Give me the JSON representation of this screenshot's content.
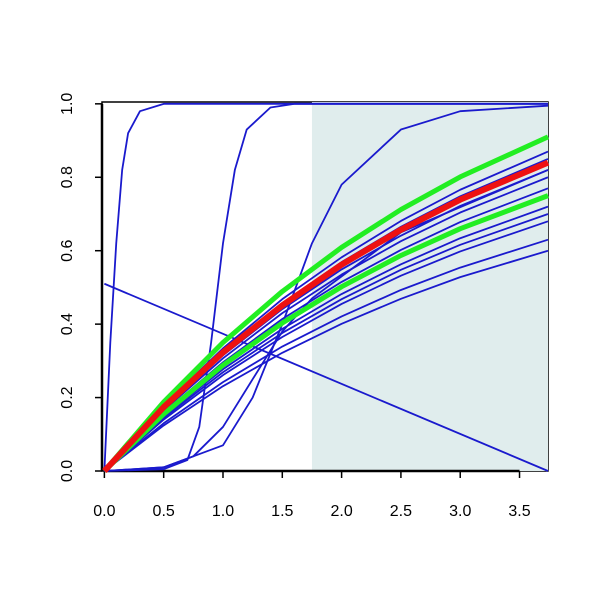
{
  "chart_data": {
    "type": "line",
    "xlim": [
      -0.02,
      3.74
    ],
    "ylim": [
      0,
      1.005
    ],
    "xticks": [
      {
        "value": 0,
        "label": "0.0"
      },
      {
        "value": 0.5,
        "label": "0.5"
      },
      {
        "value": 1,
        "label": "1.0"
      },
      {
        "value": 1.5,
        "label": "1.5"
      },
      {
        "value": 2,
        "label": "2.0"
      },
      {
        "value": 2.5,
        "label": "2.5"
      },
      {
        "value": 3,
        "label": "3.0"
      },
      {
        "value": 3.5,
        "label": "3.5"
      }
    ],
    "yticks": [
      {
        "value": 0,
        "label": "0.0"
      },
      {
        "value": 0.2,
        "label": "0.2"
      },
      {
        "value": 0.4,
        "label": "0.4"
      },
      {
        "value": 0.6,
        "label": "0.6"
      },
      {
        "value": 0.8,
        "label": "0.8"
      },
      {
        "value": 1,
        "label": "1.0"
      }
    ],
    "shaded_region": {
      "xmin": 1.75,
      "xmax": 3.74,
      "color": "#e0eded"
    },
    "series": [
      {
        "color": "#1a1acd",
        "line_width": 1.8,
        "x": [
          0,
          0.05,
          0.1,
          0.15,
          0.2,
          0.3,
          0.5,
          3.74
        ],
        "values": [
          0,
          0.35,
          0.62,
          0.82,
          0.92,
          0.98,
          1.0,
          1.0
        ]
      },
      {
        "color": "#1a1acd",
        "line_width": 1.8,
        "x": [
          0,
          0.5,
          0.7,
          0.8,
          0.9,
          1.0,
          1.1,
          1.2,
          1.4,
          1.6,
          3.74
        ],
        "values": [
          0,
          0.005,
          0.03,
          0.12,
          0.35,
          0.62,
          0.82,
          0.93,
          0.99,
          1.0,
          1.0
        ]
      },
      {
        "color": "#1a1acd",
        "line_width": 1.8,
        "x": [
          0,
          0.5,
          1.0,
          1.25,
          1.5,
          1.75,
          2.0,
          2.5,
          3.0,
          3.74
        ],
        "values": [
          0,
          0.01,
          0.07,
          0.2,
          0.4,
          0.62,
          0.78,
          0.93,
          0.98,
          0.995
        ]
      },
      {
        "color": "#1a1acd",
        "line_width": 1.8,
        "x": [
          0,
          0.5,
          0.75,
          1.0,
          1.25,
          1.5,
          1.75,
          2.5,
          3.74
        ],
        "values": [
          0,
          0.01,
          0.04,
          0.12,
          0.25,
          0.38,
          0.47,
          0.65,
          0.82
        ]
      },
      {
        "color": "#1a1acd",
        "line_width": 1.8,
        "x": [
          0,
          3.74
        ],
        "values": [
          0.51,
          0
        ]
      },
      {
        "color": "#1a1acd",
        "line_width": 1.8,
        "x": [
          0,
          0.5,
          1,
          1.5,
          2,
          2.5,
          3,
          3.74
        ],
        "values": [
          0,
          0.18,
          0.334,
          0.468,
          0.582,
          0.681,
          0.766,
          0.87
        ]
      },
      {
        "color": "#1a1acd",
        "line_width": 1.8,
        "x": [
          0,
          0.5,
          1,
          1.5,
          2,
          2.5,
          3,
          3.74
        ],
        "values": [
          0,
          0.176,
          0.327,
          0.457,
          0.569,
          0.665,
          0.748,
          0.85
        ]
      },
      {
        "color": "#1a1acd",
        "line_width": 1.8,
        "x": [
          0,
          0.5,
          1,
          1.5,
          2,
          2.5,
          3,
          3.74
        ],
        "values": [
          0,
          0.169,
          0.315,
          0.441,
          0.549,
          0.641,
          0.722,
          0.82
        ]
      },
      {
        "color": "#1a1acd",
        "line_width": 1.8,
        "x": [
          0,
          0.5,
          1,
          1.5,
          2,
          2.5,
          3,
          3.74
        ],
        "values": [
          0,
          0.165,
          0.307,
          0.43,
          0.535,
          0.626,
          0.704,
          0.8
        ]
      },
      {
        "color": "#1a1acd",
        "line_width": 1.8,
        "x": [
          0,
          0.5,
          1,
          1.5,
          2,
          2.5,
          3,
          3.74
        ],
        "values": [
          0,
          0.159,
          0.296,
          0.414,
          0.515,
          0.602,
          0.678,
          0.77
        ]
      },
      {
        "color": "#1a1acd",
        "line_width": 1.8,
        "x": [
          0,
          0.5,
          1,
          1.5,
          2,
          2.5,
          3,
          3.74
        ],
        "values": [
          0,
          0.149,
          0.277,
          0.387,
          0.482,
          0.563,
          0.634,
          0.72
        ]
      },
      {
        "color": "#1a1acd",
        "line_width": 1.8,
        "x": [
          0,
          0.5,
          1,
          1.5,
          2,
          2.5,
          3,
          3.74
        ],
        "values": [
          0,
          0.145,
          0.269,
          0.376,
          0.468,
          0.548,
          0.616,
          0.7
        ]
      },
      {
        "color": "#1a1acd",
        "line_width": 1.8,
        "x": [
          0,
          0.5,
          1,
          1.5,
          2,
          2.5,
          3,
          3.74
        ],
        "values": [
          0,
          0.14,
          0.261,
          0.365,
          0.455,
          0.532,
          0.598,
          0.68
        ]
      },
      {
        "color": "#1a1acd",
        "line_width": 1.8,
        "x": [
          0,
          0.5,
          1,
          1.5,
          2,
          2.5,
          3,
          3.74
        ],
        "values": [
          0,
          0.13,
          0.242,
          0.339,
          0.421,
          0.493,
          0.554,
          0.63
        ]
      },
      {
        "color": "#1a1acd",
        "line_width": 1.8,
        "x": [
          0,
          0.5,
          1,
          1.5,
          2,
          2.5,
          3,
          3.74
        ],
        "values": [
          0,
          0.124,
          0.231,
          0.322,
          0.401,
          0.469,
          0.528,
          0.6
        ]
      },
      {
        "color": "#22ee22",
        "line_width": 5,
        "x": [
          0,
          0.5,
          1,
          1.5,
          2,
          2.5,
          3,
          3.74
        ],
        "values": [
          0,
          0.188,
          0.35,
          0.489,
          0.609,
          0.712,
          0.801,
          0.91
        ]
      },
      {
        "color": "#22ee22",
        "line_width": 5,
        "x": [
          0,
          0.5,
          1,
          1.5,
          2,
          2.5,
          3,
          3.74
        ],
        "values": [
          0,
          0.155,
          0.288,
          0.403,
          0.502,
          0.587,
          0.66,
          0.75
        ]
      },
      {
        "color": "#ee1111",
        "line_width": 6,
        "x": [
          0,
          0.5,
          1,
          1.5,
          2,
          2.5,
          3,
          3.74
        ],
        "values": [
          0,
          0.174,
          0.323,
          0.451,
          0.562,
          0.657,
          0.739,
          0.84
        ]
      }
    ]
  }
}
